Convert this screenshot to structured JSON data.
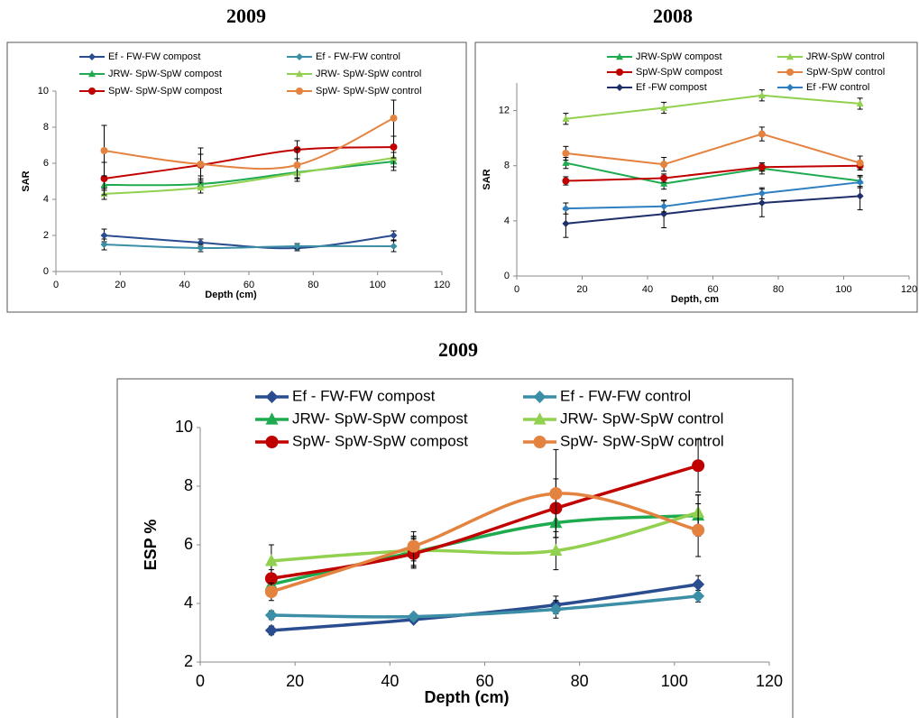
{
  "chart_data": [
    {
      "type": "line",
      "title": "2009",
      "x_label": "Depth (cm)",
      "y_label": "SAR",
      "x": [
        15,
        45,
        75,
        105
      ],
      "xlim": [
        0,
        120
      ],
      "xticks": [
        0,
        20,
        40,
        60,
        80,
        100,
        120
      ],
      "ylim": [
        0,
        10
      ],
      "yticks": [
        0,
        2,
        4,
        6,
        8,
        10
      ],
      "legend": "top",
      "smooth": true,
      "series": [
        {
          "name": "Ef - FW-FW compost",
          "color": "#2a4d8f",
          "marker": "diamond",
          "values": [
            2.0,
            1.6,
            1.3,
            2.0
          ],
          "errors": [
            0.35,
            0.2,
            0.15,
            0.25
          ]
        },
        {
          "name": "Ef - FW-FW control",
          "color": "#3b8ea5",
          "marker": "diamond",
          "values": [
            1.5,
            1.3,
            1.4,
            1.4
          ],
          "errors": [
            0.3,
            0.2,
            0.15,
            0.3
          ]
        },
        {
          "name": "JRW- SpW-SpW compost",
          "color": "#1eab4f",
          "marker": "triangle",
          "values": [
            4.8,
            4.85,
            5.5,
            6.1
          ],
          "errors": [
            0.3,
            0.3,
            0.3,
            0.5
          ]
        },
        {
          "name": "JRW- SpW-SpW control",
          "color": "#92d050",
          "marker": "triangle",
          "values": [
            4.3,
            4.65,
            5.45,
            6.3
          ],
          "errors": [
            0.3,
            0.3,
            0.3,
            0.5
          ]
        },
        {
          "name": "SpW- SpW-SpW compost",
          "color": "#c00000",
          "marker": "circle",
          "values": [
            5.15,
            5.9,
            6.75,
            6.9
          ],
          "errors": [
            0.9,
            0.6,
            0.5,
            0.6
          ]
        },
        {
          "name": "SpW- SpW-SpW control",
          "color": "#e4823f",
          "marker": "circle",
          "values": [
            6.7,
            5.95,
            5.9,
            8.5
          ],
          "errors": [
            1.4,
            0.9,
            0.9,
            1.0
          ]
        }
      ]
    },
    {
      "type": "line",
      "title": "2008",
      "x_label": "Depth, cm",
      "y_label": "SAR",
      "x": [
        15,
        45,
        75,
        105
      ],
      "xlim": [
        0,
        120
      ],
      "xticks": [
        0,
        20,
        40,
        60,
        80,
        100,
        120
      ],
      "ylim": [
        0,
        14
      ],
      "yticks": [
        0,
        4,
        8,
        12
      ],
      "legend": "top",
      "smooth": false,
      "series": [
        {
          "name": "JRW-SpW compost",
          "color": "#1eab4f",
          "marker": "triangle",
          "values": [
            8.2,
            6.7,
            7.8,
            6.9
          ],
          "errors": [
            0.4,
            0.4,
            0.4,
            0.4
          ]
        },
        {
          "name": "JRW-SpW control",
          "color": "#92d050",
          "marker": "triangle",
          "values": [
            11.4,
            12.2,
            13.1,
            12.5
          ],
          "errors": [
            0.4,
            0.4,
            0.4,
            0.4
          ]
        },
        {
          "name": "SpW-SpW compost",
          "color": "#c00000",
          "marker": "circle",
          "values": [
            6.9,
            7.1,
            7.9,
            8.0
          ],
          "errors": [
            0.3,
            0.3,
            0.3,
            0.3
          ]
        },
        {
          "name": "SpW-SpW control",
          "color": "#e4823f",
          "marker": "circle",
          "values": [
            8.9,
            8.1,
            10.3,
            8.2
          ],
          "errors": [
            0.5,
            0.5,
            0.5,
            0.5
          ]
        },
        {
          "name": "Ef -FW compost",
          "color": "#1f2f6b",
          "marker": "diamond",
          "values": [
            3.8,
            4.5,
            5.3,
            5.8
          ],
          "errors": [
            1.0,
            1.0,
            1.0,
            1.0
          ]
        },
        {
          "name": "Ef -FW control",
          "color": "#2d7fc1",
          "marker": "diamond",
          "values": [
            4.9,
            5.05,
            6.0,
            6.8
          ],
          "errors": [
            0.4,
            0.4,
            0.4,
            0.4
          ]
        }
      ]
    },
    {
      "type": "line",
      "title": "2009",
      "x_label": "Depth (cm)",
      "y_label": "ESP %",
      "x": [
        15,
        45,
        75,
        105
      ],
      "xlim": [
        0,
        120
      ],
      "xticks": [
        0,
        20,
        40,
        60,
        80,
        100,
        120
      ],
      "ylim": [
        2,
        10
      ],
      "yticks": [
        2,
        4,
        6,
        8,
        10
      ],
      "legend": "top",
      "smooth": true,
      "series": [
        {
          "name": "Ef - FW-FW compost",
          "color": "#2a4d8f",
          "marker": "diamond",
          "values": [
            3.08,
            3.45,
            3.95,
            4.65
          ],
          "errors": [
            0.15,
            0.1,
            0.3,
            0.3
          ]
        },
        {
          "name": "Ef - FW-FW control",
          "color": "#3b8ea5",
          "marker": "diamond",
          "values": [
            3.6,
            3.55,
            3.8,
            4.25
          ],
          "errors": [
            0.15,
            0.1,
            0.3,
            0.2
          ]
        },
        {
          "name": "JRW- SpW-SpW compost",
          "color": "#1eab4f",
          "marker": "triangle",
          "values": [
            4.65,
            5.75,
            6.75,
            7.0
          ],
          "errors": [
            0.3,
            0.5,
            0.5,
            0.7
          ]
        },
        {
          "name": "JRW- SpW-SpW control",
          "color": "#92d050",
          "marker": "triangle",
          "values": [
            5.45,
            5.8,
            5.8,
            7.1
          ],
          "errors": [
            0.55,
            0.5,
            0.65,
            0.6
          ]
        },
        {
          "name": "SpW- SpW-SpW compost",
          "color": "#c00000",
          "marker": "circle",
          "values": [
            4.85,
            5.7,
            7.25,
            8.7
          ],
          "errors": [
            0.3,
            0.5,
            1.0,
            0.9
          ]
        },
        {
          "name": "SpW- SpW-SpW control",
          "color": "#e4823f",
          "marker": "circle",
          "values": [
            4.4,
            5.95,
            7.75,
            6.5
          ],
          "errors": [
            0.3,
            0.5,
            1.5,
            0.9
          ]
        }
      ]
    }
  ]
}
